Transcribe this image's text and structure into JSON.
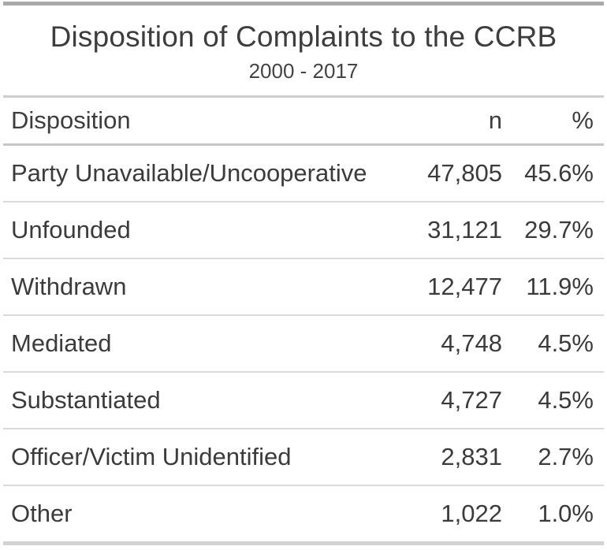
{
  "table": {
    "title": "Disposition of Complaints to the CCRB",
    "subtitle": "2000 - 2017",
    "columns": {
      "disposition": "Disposition",
      "n": "n",
      "pct": "%"
    },
    "rows": [
      {
        "disposition": "Party Unavailable/Uncooperative",
        "n": "47,805",
        "pct": "45.6%"
      },
      {
        "disposition": "Unfounded",
        "n": "31,121",
        "pct": "29.7%"
      },
      {
        "disposition": "Withdrawn",
        "n": "12,477",
        "pct": "11.9%"
      },
      {
        "disposition": "Mediated",
        "n": "4,748",
        "pct": "4.5%"
      },
      {
        "disposition": "Substantiated",
        "n": "4,727",
        "pct": "4.5%"
      },
      {
        "disposition": "Officer/Victim Unidentified",
        "n": "2,831",
        "pct": "2.7%"
      },
      {
        "disposition": "Other",
        "n": "1,022",
        "pct": "1.0%"
      }
    ],
    "colors": {
      "top_bar": "#a9a9a9",
      "header_rule": "#c6c6c6",
      "row_rule": "#d9d9d9",
      "bottom_bar": "#d2d2d2",
      "text": "#3b3b3b"
    }
  },
  "chart_data": {
    "type": "table",
    "title": "Disposition of Complaints to the CCRB",
    "subtitle": "2000 - 2017",
    "columns": [
      "Disposition",
      "n",
      "%"
    ],
    "categories": [
      "Party Unavailable/Uncooperative",
      "Unfounded",
      "Withdrawn",
      "Mediated",
      "Substantiated",
      "Officer/Victim Unidentified",
      "Other"
    ],
    "series": [
      {
        "name": "n",
        "values": [
          47805,
          31121,
          12477,
          4748,
          4727,
          2831,
          1022
        ]
      },
      {
        "name": "%",
        "values": [
          45.6,
          29.7,
          11.9,
          4.5,
          4.5,
          2.7,
          1.0
        ]
      }
    ]
  }
}
